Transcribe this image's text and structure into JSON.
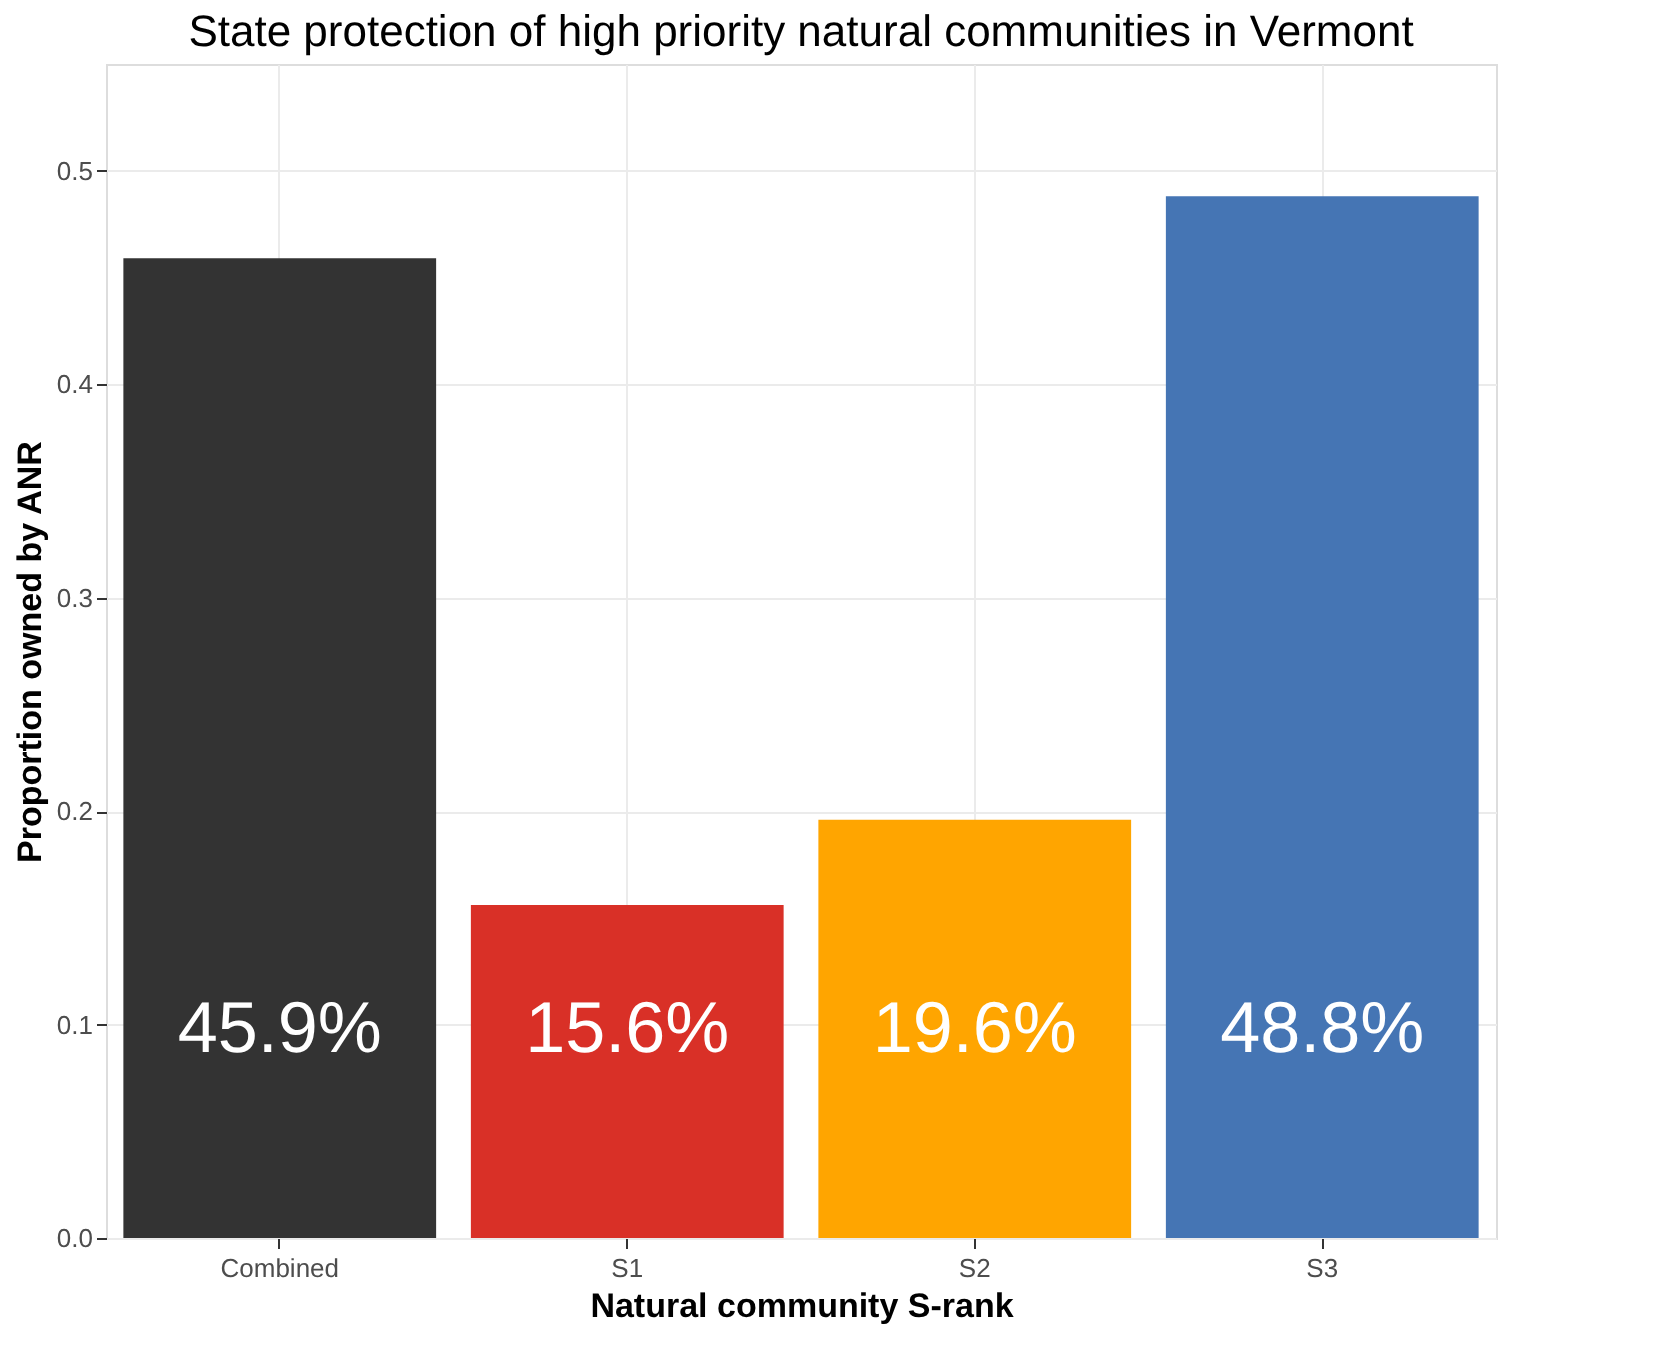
{
  "chart_data": {
    "type": "bar",
    "title": "State protection of high priority natural communities in Vermont",
    "xlabel": "Natural community S-rank",
    "ylabel": "Proportion owned by ANR",
    "categories": [
      "Combined",
      "S1",
      "S2",
      "S3"
    ],
    "values": [
      0.459,
      0.156,
      0.196,
      0.488
    ],
    "colors": [
      "#333333",
      "#d93027",
      "#ffa500",
      "#4575b4"
    ],
    "value_labels": [
      "45.9%",
      "15.6%",
      "19.6%",
      "48.8%"
    ],
    "ylim": [
      0,
      0.55
    ],
    "yticks": [
      {
        "value": 0,
        "label": "0.0"
      },
      0.1,
      0.2,
      0.3,
      0.4,
      0.5
    ],
    "grid": true,
    "legend": false
  }
}
